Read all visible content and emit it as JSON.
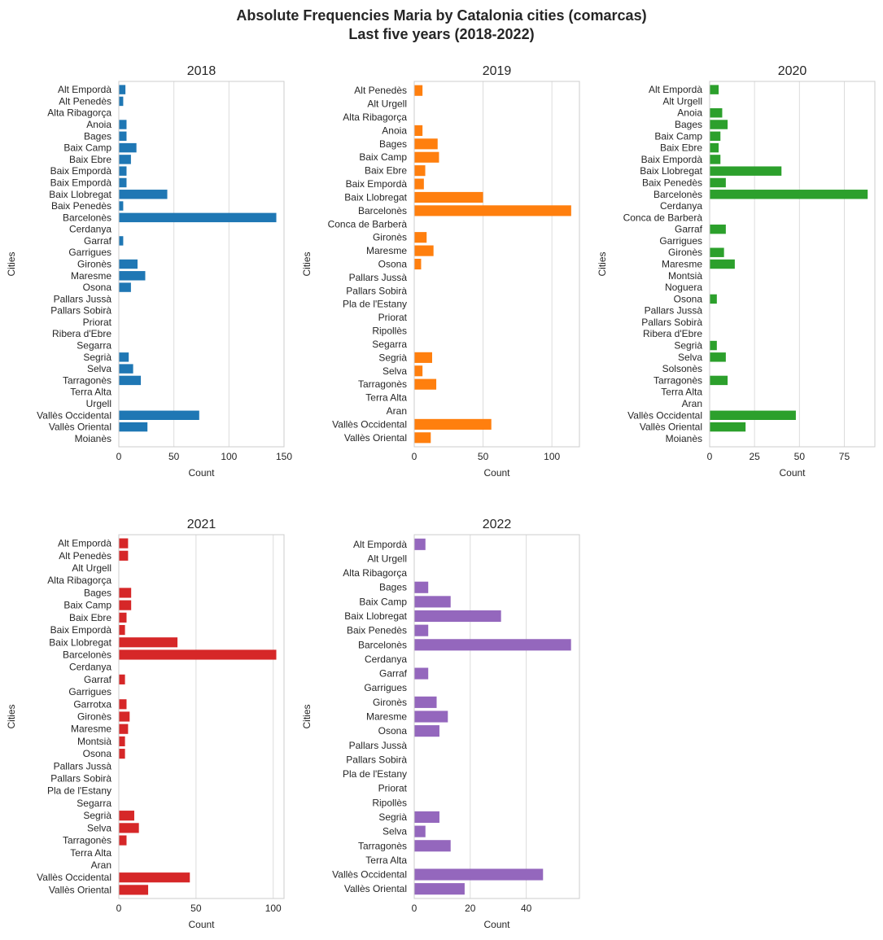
{
  "figure": {
    "title_line1": "Absolute Frequencies Maria by Catalonia cities (comarcas)",
    "title_line2": "Last five years (2018-2022)"
  },
  "chart_data": [
    {
      "type": "bar",
      "orientation": "horizontal",
      "title": "2018",
      "xlabel": "Count",
      "ylabel": "Cities",
      "color": "#1f77b4",
      "xlim": [
        0,
        150
      ],
      "xticks": [
        0,
        50,
        100,
        150
      ],
      "grid": "x",
      "categories": [
        "Alt Empordà",
        "Alt Penedès",
        "Alta Ribagorça",
        "Anoia",
        "Bages",
        "Baix Camp",
        "Baix Ebre",
        "Baix Empordà",
        "Baix Empordà",
        "Baix Llobregat",
        "Baix Penedès",
        "Barcelonès",
        "Cerdanya",
        "Garraf",
        "Garrigues",
        "Gironès",
        "Maresme",
        "Osona",
        "Pallars Jussà",
        "Pallars Sobirà",
        "Priorat",
        "Ribera d'Ebre",
        "Segarra",
        "Segrià",
        "Selva",
        "Tarragonès",
        "Terra Alta",
        "Urgell",
        "Vallès Occidental",
        "Vallès Oriental",
        "Moianès"
      ],
      "values": [
        6,
        4,
        0,
        7,
        7,
        16,
        11,
        7,
        7,
        44,
        4,
        143,
        0,
        4,
        0,
        17,
        24,
        11,
        0,
        0,
        0,
        0,
        0,
        9,
        13,
        20,
        0,
        0,
        73,
        26,
        0
      ]
    },
    {
      "type": "bar",
      "orientation": "horizontal",
      "title": "2019",
      "xlabel": "Count",
      "ylabel": "Cities",
      "color": "#ff7f0e",
      "xlim": [
        0,
        120
      ],
      "xticks": [
        0,
        50,
        100
      ],
      "grid": "x",
      "categories": [
        "Alt Penedès",
        "Alt Urgell",
        "Alta Ribagorça",
        "Anoia",
        "Bages",
        "Baix Camp",
        "Baix Ebre",
        "Baix Empordà",
        "Baix Llobregat",
        "Barcelonès",
        "Conca de Barberà",
        "Gironès",
        "Maresme",
        "Osona",
        "Pallars Jussà",
        "Pallars Sobirà",
        "Pla de l'Estany",
        "Priorat",
        "Ripollès",
        "Segarra",
        "Segrià",
        "Selva",
        "Tarragonès",
        "Terra Alta",
        "Aran",
        "Vallès Occidental",
        "Vallès Oriental"
      ],
      "values": [
        6,
        0,
        0,
        6,
        17,
        18,
        8,
        7,
        50,
        114,
        0,
        9,
        14,
        5,
        0,
        0,
        0,
        0,
        0,
        0,
        13,
        6,
        16,
        0,
        0,
        56,
        12
      ]
    },
    {
      "type": "bar",
      "orientation": "horizontal",
      "title": "2020",
      "xlabel": "Count",
      "ylabel": "Cities",
      "color": "#2ca02c",
      "xlim": [
        0,
        92
      ],
      "xticks": [
        0,
        25,
        50,
        75
      ],
      "grid": "x",
      "categories": [
        "Alt Empordà",
        "Alt Urgell",
        "Anoia",
        "Bages",
        "Baix Camp",
        "Baix Ebre",
        "Baix Empordà",
        "Baix Llobregat",
        "Baix Penedès",
        "Barcelonès",
        "Cerdanya",
        "Conca de Barberà",
        "Garraf",
        "Garrigues",
        "Gironès",
        "Maresme",
        "Montsià",
        "Noguera",
        "Osona",
        "Pallars Jussà",
        "Pallars Sobirà",
        "Ribera d'Ebre",
        "Segrià",
        "Selva",
        "Solsonès",
        "Tarragonès",
        "Terra Alta",
        "Aran",
        "Vallès Occidental",
        "Vallès Oriental",
        "Moianès"
      ],
      "values": [
        5,
        0,
        7,
        10,
        6,
        5,
        6,
        40,
        9,
        88,
        0,
        0,
        9,
        0,
        8,
        14,
        0,
        0,
        4,
        0,
        0,
        0,
        4,
        9,
        0,
        10,
        0,
        0,
        48,
        20,
        0
      ]
    },
    {
      "type": "bar",
      "orientation": "horizontal",
      "title": "2021",
      "xlabel": "Count",
      "ylabel": "Cities",
      "color": "#d62728",
      "xlim": [
        0,
        107
      ],
      "xticks": [
        0,
        50,
        100
      ],
      "grid": "x",
      "categories": [
        "Alt Empordà",
        "Alt Penedès",
        "Alt Urgell",
        "Alta Ribagorça",
        "Bages",
        "Baix Camp",
        "Baix Ebre",
        "Baix Empordà",
        "Baix Llobregat",
        "Barcelonès",
        "Cerdanya",
        "Garraf",
        "Garrigues",
        "Garrotxa",
        "Gironès",
        "Maresme",
        "Montsià",
        "Osona",
        "Pallars Jussà",
        "Pallars Sobirà",
        "Pla de l'Estany",
        "Segarra",
        "Segrià",
        "Selva",
        "Tarragonès",
        "Terra Alta",
        "Aran",
        "Vallès Occidental",
        "Vallès Oriental"
      ],
      "values": [
        6,
        6,
        0,
        0,
        8,
        8,
        5,
        4,
        38,
        102,
        0,
        4,
        0,
        5,
        7,
        6,
        4,
        4,
        0,
        0,
        0,
        0,
        10,
        13,
        5,
        0,
        0,
        46,
        19
      ]
    },
    {
      "type": "bar",
      "orientation": "horizontal",
      "title": "2022",
      "xlabel": "Count",
      "ylabel": "Cities",
      "color": "#9467bd",
      "xlim": [
        0,
        59
      ],
      "xticks": [
        0,
        20,
        40
      ],
      "grid": "x",
      "categories": [
        "Alt Empordà",
        "Alt Urgell",
        "Alta Ribagorça",
        "Bages",
        "Baix Camp",
        "Baix Llobregat",
        "Baix Penedès",
        "Barcelonès",
        "Cerdanya",
        "Garraf",
        "Garrigues",
        "Gironès",
        "Maresme",
        "Osona",
        "Pallars Jussà",
        "Pallars Sobirà",
        "Pla de l'Estany",
        "Priorat",
        "Ripollès",
        "Segrià",
        "Selva",
        "Tarragonès",
        "Terra Alta",
        "Vallès Occidental",
        "Vallès Oriental"
      ],
      "values": [
        4,
        0,
        0,
        5,
        13,
        31,
        5,
        56,
        0,
        5,
        0,
        8,
        12,
        9,
        0,
        0,
        0,
        0,
        0,
        9,
        4,
        13,
        0,
        46,
        18
      ]
    }
  ]
}
